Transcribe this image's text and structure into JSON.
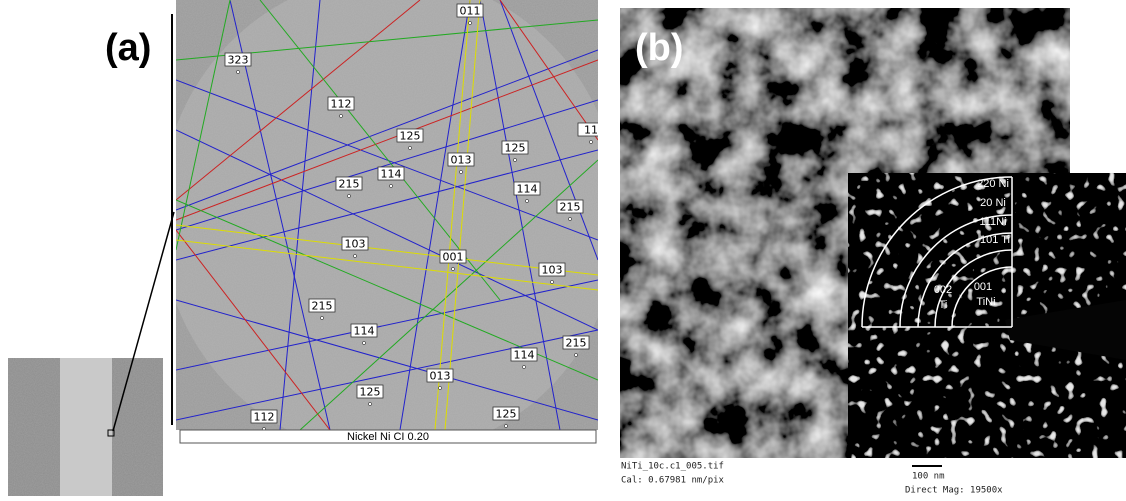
{
  "panel_a": {
    "label": "(a)",
    "footer": "Nickel Ni  CI 0.20",
    "indices": [
      "011",
      "323",
      "112",
      "125",
      "125",
      "11",
      "013",
      "215",
      "114",
      "114",
      "215",
      "103",
      "001",
      "103",
      "215",
      "114",
      "215",
      "114",
      "013",
      "125",
      "125",
      "112"
    ]
  },
  "panel_b": {
    "label": "(b)",
    "rings": [
      "220 Ni",
      "20 Ni",
      "111Ni",
      "101 Ti"
    ],
    "inner": [
      "001",
      "TiNi",
      "002",
      "Ti"
    ],
    "caption": {
      "file": "NiTi_10c.c1_005.tif",
      "cal": "Cal: 0.67981 nm/pix",
      "scale": "100 nm",
      "mag": "Direct Mag: 19500x"
    }
  }
}
